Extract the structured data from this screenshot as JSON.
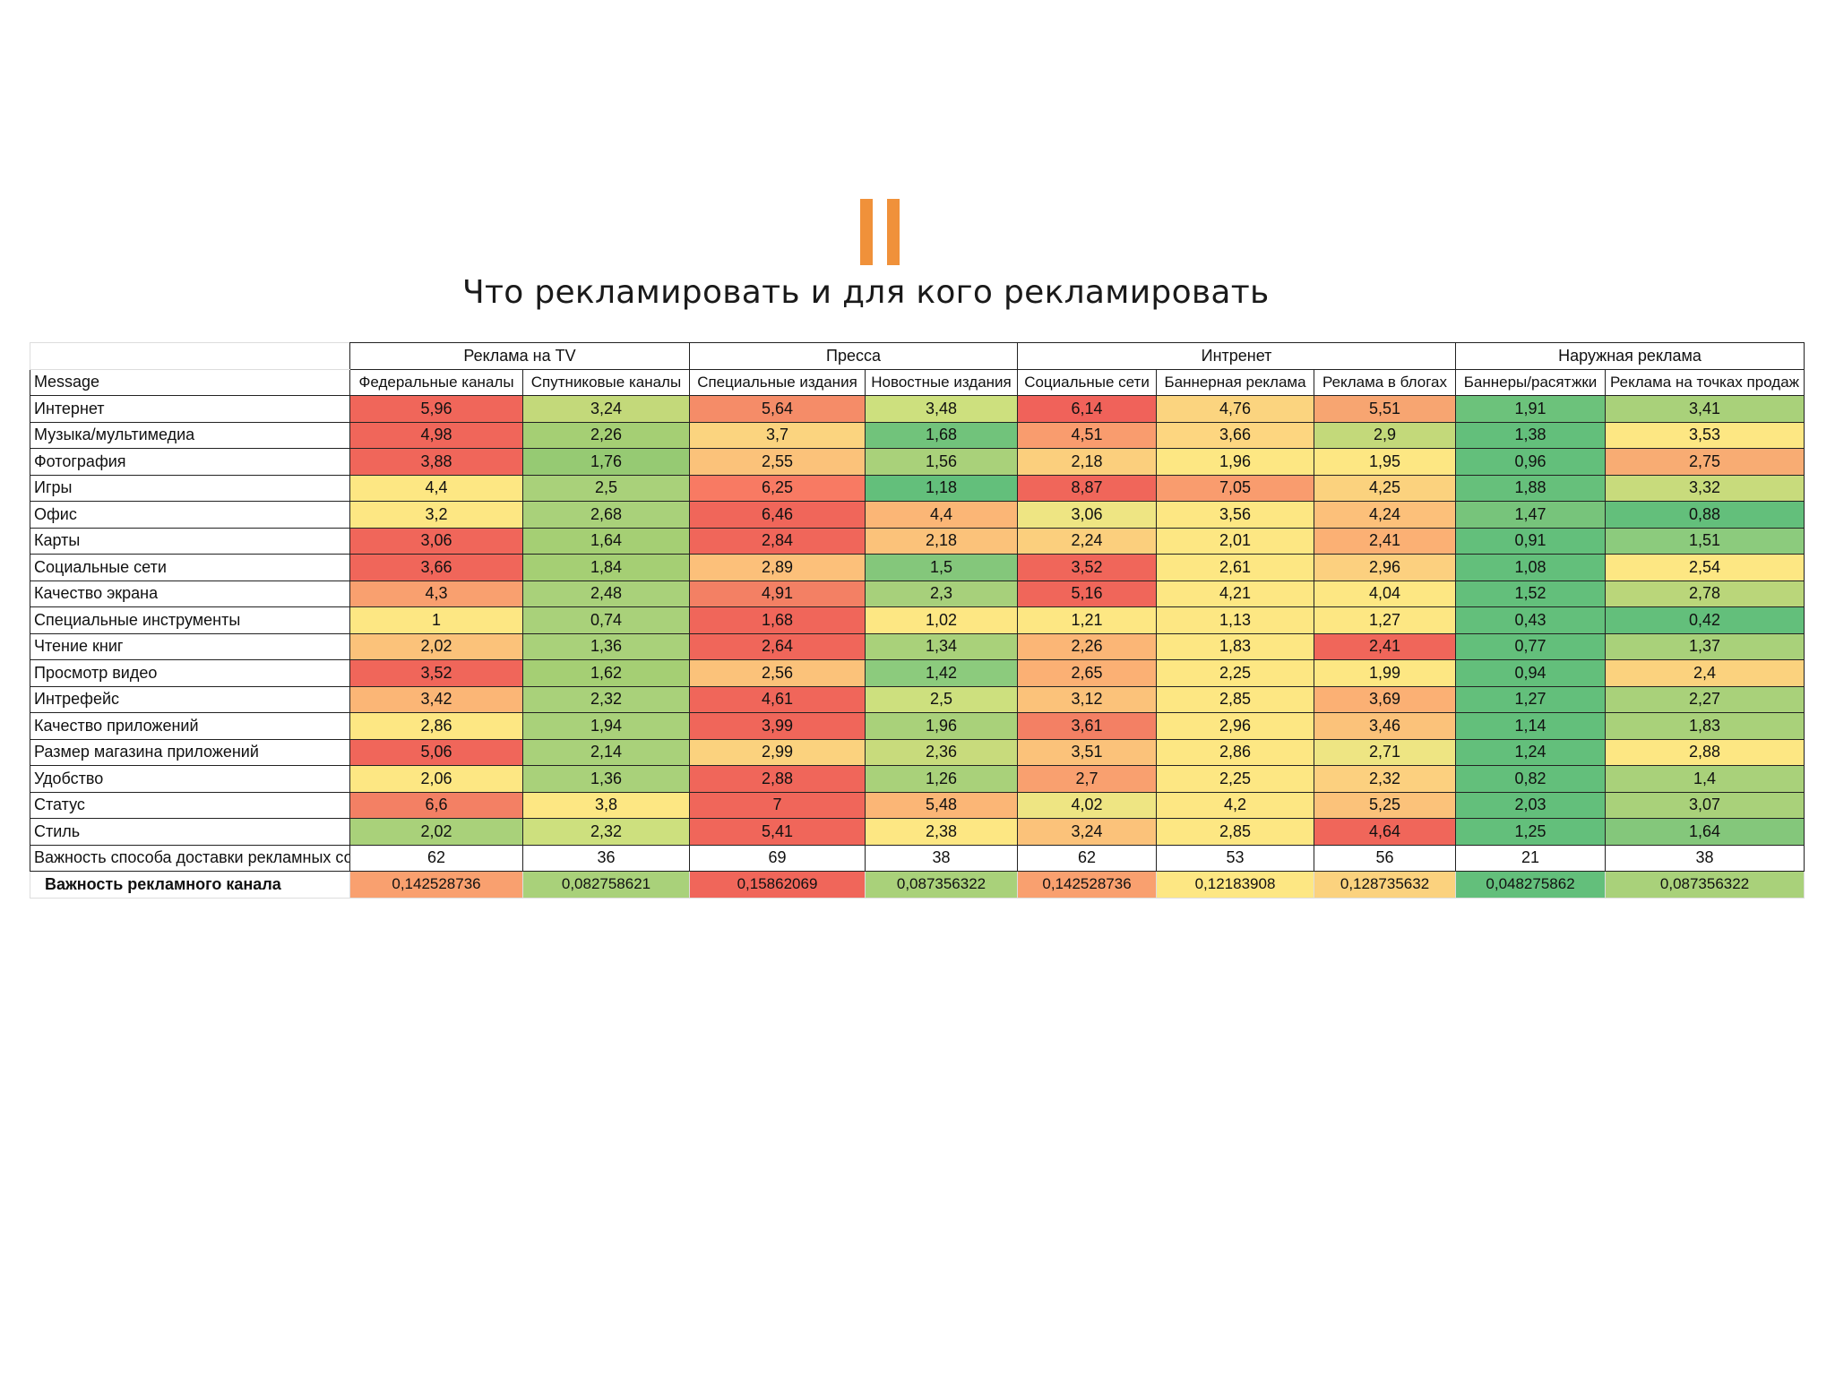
{
  "slide": {
    "title": "Что рекламировать и для кого рекламировать",
    "logo_icon": "two-orange-bars",
    "accent": "#f0913a"
  },
  "table": {
    "groups": [
      {
        "label": "Реклама на TV",
        "span": 2
      },
      {
        "label": "Пресса",
        "span": 2
      },
      {
        "label": "Интренет",
        "span": 3
      },
      {
        "label": "Наружная реклама",
        "span": 2
      }
    ],
    "row_header": "Message",
    "columns": [
      "Федеральные каналы",
      "Спутниковые каналы",
      "Специальные издания",
      "Новостные издания",
      "Социальные сети",
      "Баннерная реклама",
      "Реклама в блогах",
      "Баннеры/расятжки",
      "Реклама на точках продаж"
    ],
    "rows": [
      {
        "label": "Интернет",
        "values": [
          "5,96",
          "3,24",
          "5,64",
          "3,48",
          "6,14",
          "4,76",
          "5,51",
          "1,91",
          "3,41"
        ],
        "colors": [
          "#f0665a",
          "#c3d97a",
          "#f58c68",
          "#cde07e",
          "#f0625a",
          "#fbd47f",
          "#f7a571",
          "#6cc27b",
          "#a9d17a"
        ]
      },
      {
        "label": "Музыка/мультимедиа",
        "values": [
          "4,98",
          "2,26",
          "3,7",
          "1,68",
          "4,51",
          "3,66",
          "2,9",
          "1,38",
          "3,53"
        ],
        "colors": [
          "#f0665a",
          "#a5cf74",
          "#fbd47f",
          "#71c37b",
          "#f99c6e",
          "#fdd680",
          "#c3d97a",
          "#63bf7b",
          "#fde783"
        ]
      },
      {
        "label": "Фотография",
        "values": [
          "3,88",
          "1,76",
          "2,55",
          "1,56",
          "2,18",
          "1,96",
          "1,95",
          "0,96",
          "2,75"
        ],
        "colors": [
          "#f0665a",
          "#96ca73",
          "#fbc27a",
          "#a9d17a",
          "#fbcf7d",
          "#fde783",
          "#fde783",
          "#63bf7b",
          "#f8ac73"
        ]
      },
      {
        "label": "Игры",
        "values": [
          "4,4",
          "2,5",
          "6,25",
          "1,18",
          "8,87",
          "7,05",
          "4,25",
          "1,88",
          "3,32"
        ],
        "colors": [
          "#fde783",
          "#a9d17a",
          "#f87a63",
          "#63bf7b",
          "#f0665a",
          "#f99c6e",
          "#fbd27e",
          "#66c07b",
          "#c8db7c"
        ]
      },
      {
        "label": "Офис",
        "values": [
          "3,2",
          "2,68",
          "6,46",
          "4,4",
          "3,06",
          "3,56",
          "4,24",
          "1,47",
          "0,88"
        ],
        "colors": [
          "#fde783",
          "#a9d17a",
          "#f0665a",
          "#fbb676",
          "#eee583",
          "#fde783",
          "#fcc07a",
          "#77c47b",
          "#63bf7b"
        ]
      },
      {
        "label": "Карты",
        "values": [
          "3,06",
          "1,64",
          "2,84",
          "2,18",
          "2,24",
          "2,01",
          "2,41",
          "0,91",
          "1,51"
        ],
        "colors": [
          "#f0665a",
          "#a5cf74",
          "#f0665a",
          "#fbc27a",
          "#fbcf7d",
          "#fde783",
          "#fbb074",
          "#63bf7b",
          "#8ccb7d"
        ]
      },
      {
        "label": "Социальные сети",
        "values": [
          "3,66",
          "1,84",
          "2,89",
          "1,5",
          "3,52",
          "2,61",
          "2,96",
          "1,08",
          "2,54"
        ],
        "colors": [
          "#f0665a",
          "#a5cf74",
          "#fcc07a",
          "#84c77b",
          "#f0665a",
          "#fde783",
          "#fcd07f",
          "#63bf7b",
          "#fde783"
        ]
      },
      {
        "label": "Качество экрана",
        "values": [
          "4,3",
          "2,48",
          "4,91",
          "2,3",
          "5,16",
          "4,21",
          "4,04",
          "1,52",
          "2,78"
        ],
        "colors": [
          "#f9a06f",
          "#a9d17a",
          "#f38064",
          "#a7d07b",
          "#f0665a",
          "#fde783",
          "#fde783",
          "#63bf7b",
          "#bad67a"
        ]
      },
      {
        "label": "Специальные инструменты",
        "values": [
          "1",
          "0,74",
          "1,68",
          "1,02",
          "1,21",
          "1,13",
          "1,27",
          "0,43",
          "0,42"
        ],
        "colors": [
          "#fde783",
          "#a9d17a",
          "#f0665a",
          "#fde783",
          "#fde783",
          "#fde783",
          "#fde783",
          "#63bf7b",
          "#63bf7b"
        ]
      },
      {
        "label": "Чтение книг",
        "values": [
          "2,02",
          "1,36",
          "2,64",
          "1,34",
          "2,26",
          "1,83",
          "2,41",
          "0,77",
          "1,37"
        ],
        "colors": [
          "#fbc27a",
          "#a9d17a",
          "#f0665a",
          "#a9d17a",
          "#fbb676",
          "#fde783",
          "#f0665a",
          "#63bf7b",
          "#a9d17a"
        ]
      },
      {
        "label": "Просмотр видео",
        "values": [
          "3,52",
          "1,62",
          "2,56",
          "1,42",
          "2,65",
          "2,25",
          "1,99",
          "0,94",
          "2,4"
        ],
        "colors": [
          "#f0665a",
          "#a5cf74",
          "#fbc27a",
          "#8ccb7d",
          "#fbb074",
          "#fde783",
          "#fde783",
          "#63bf7b",
          "#fbd27e"
        ]
      },
      {
        "label": "Интрефейс",
        "values": [
          "3,42",
          "2,32",
          "4,61",
          "2,5",
          "3,12",
          "2,85",
          "3,69",
          "1,27",
          "2,27"
        ],
        "colors": [
          "#fbb676",
          "#a9d17a",
          "#f0665a",
          "#cde07e",
          "#fbc27a",
          "#fde783",
          "#fbb074",
          "#63bf7b",
          "#a9d17a"
        ]
      },
      {
        "label": "Качество приложений",
        "values": [
          "2,86",
          "1,94",
          "3,99",
          "1,96",
          "3,61",
          "2,96",
          "3,46",
          "1,14",
          "1,83"
        ],
        "colors": [
          "#fde783",
          "#a9d17a",
          "#f0665a",
          "#a9d17a",
          "#f38064",
          "#fde783",
          "#fbc27a",
          "#63bf7b",
          "#a9d17a"
        ]
      },
      {
        "label": "Размер магазина приложений",
        "values": [
          "5,06",
          "2,14",
          "2,99",
          "2,36",
          "3,51",
          "2,86",
          "2,71",
          "1,24",
          "2,88"
        ],
        "colors": [
          "#f0665a",
          "#a9d17a",
          "#fbd27e",
          "#c8db7c",
          "#fbc27a",
          "#fde783",
          "#eee583",
          "#63bf7b",
          "#fde783"
        ]
      },
      {
        "label": "Удобство",
        "values": [
          "2,06",
          "1,36",
          "2,88",
          "1,26",
          "2,7",
          "2,25",
          "2,32",
          "0,82",
          "1,4"
        ],
        "colors": [
          "#fde783",
          "#a9d17a",
          "#f0665a",
          "#a9d17a",
          "#f9a06f",
          "#fde783",
          "#fcd07f",
          "#63bf7b",
          "#a9d17a"
        ]
      },
      {
        "label": "Статус",
        "values": [
          "6,6",
          "3,8",
          "7",
          "5,48",
          "4,02",
          "4,2",
          "5,25",
          "2,03",
          "3,07"
        ],
        "colors": [
          "#f38064",
          "#fde783",
          "#f0665a",
          "#fbb676",
          "#eee583",
          "#fde783",
          "#fbc27a",
          "#63bf7b",
          "#a9d17a"
        ]
      },
      {
        "label": "Стиль",
        "values": [
          "2,02",
          "2,32",
          "5,41",
          "2,38",
          "3,24",
          "2,85",
          "4,64",
          "1,25",
          "1,64"
        ],
        "colors": [
          "#a9d17a",
          "#cde07e",
          "#f0665a",
          "#fde783",
          "#fbc27a",
          "#fde783",
          "#f0665a",
          "#63bf7b",
          "#84c77b"
        ]
      }
    ],
    "importance_row": {
      "label": "Важность способа доставки рекламных сообщений",
      "values": [
        "62",
        "36",
        "69",
        "38",
        "62",
        "53",
        "56",
        "21",
        "38"
      ]
    },
    "channel_row": {
      "label": "Важность рекламного канала",
      "values": [
        "0,142528736",
        "0,082758621",
        "0,15862069",
        "0,087356322",
        "0,142528736",
        "0,12183908",
        "0,128735632",
        "0,048275862",
        "0,087356322"
      ],
      "colors": [
        "#f9a06f",
        "#a9d17a",
        "#f0665a",
        "#a9d17a",
        "#f9a06f",
        "#fde783",
        "#fbd27e",
        "#63bf7b",
        "#a9d17a"
      ]
    }
  }
}
